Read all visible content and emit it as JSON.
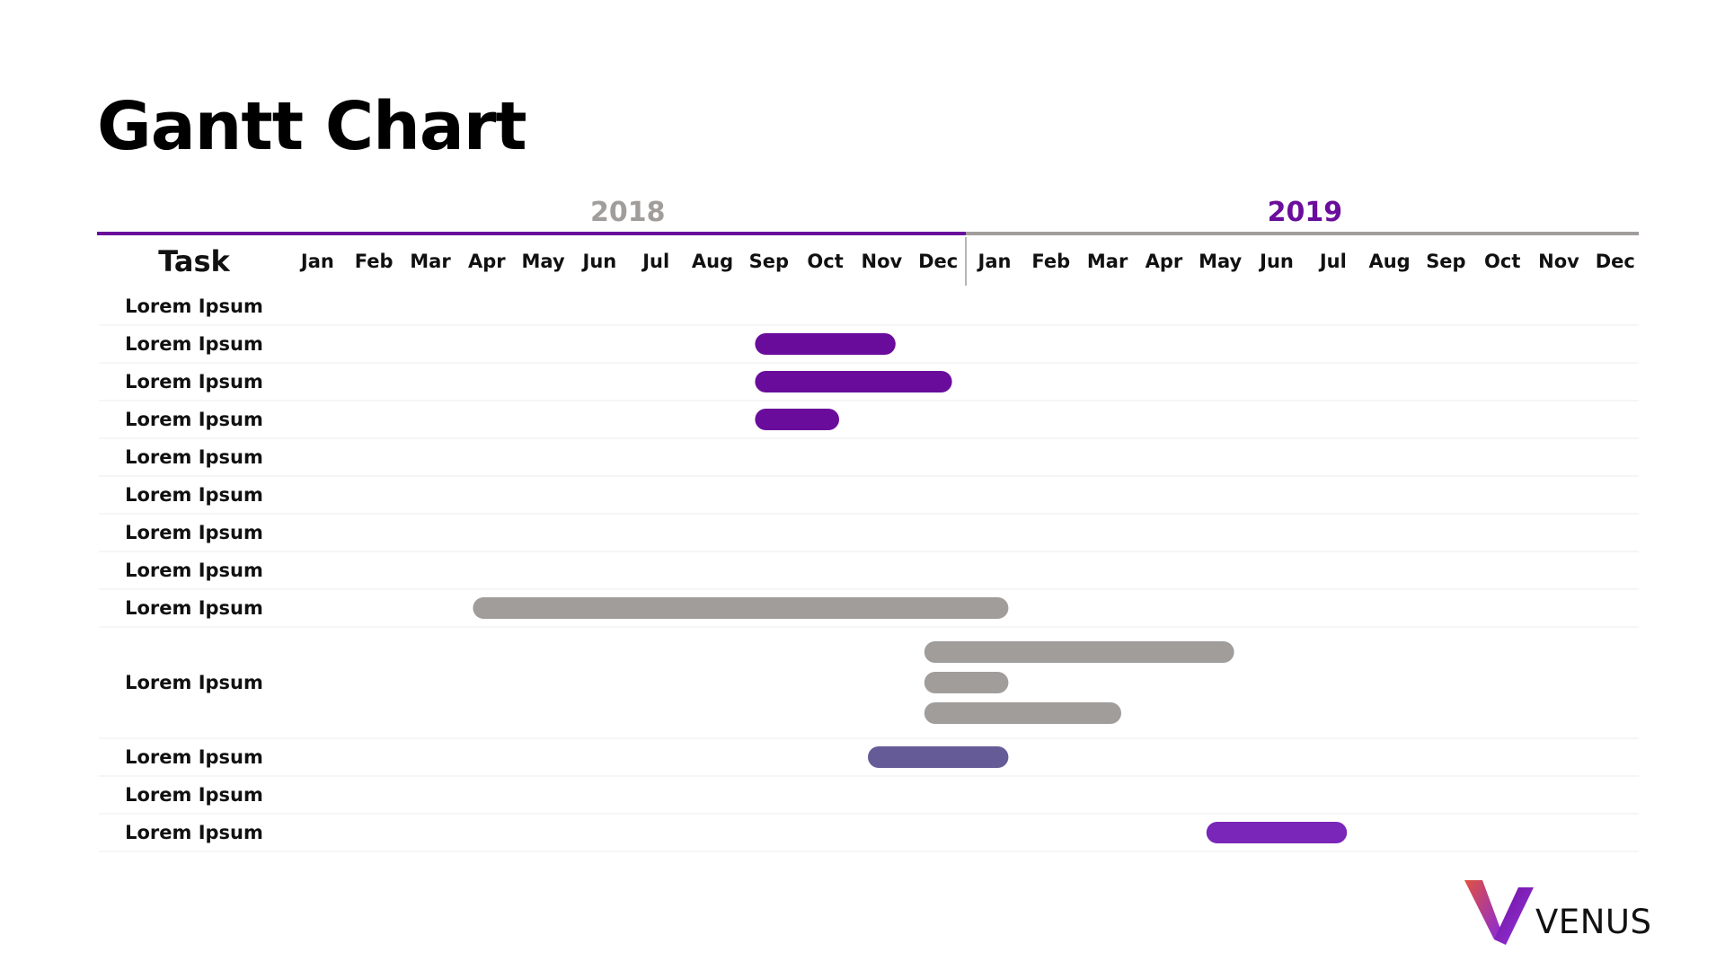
{
  "page": {
    "title": "Gantt Chart",
    "logo_text": "VENUS"
  },
  "chart_data": {
    "type": "gantt",
    "task_header": "Task",
    "years": [
      {
        "label": "2018",
        "color": "#a09d9b"
      },
      {
        "label": "2019",
        "color": "#6a0d9c"
      }
    ],
    "months": [
      "Jan",
      "Feb",
      "Mar",
      "Apr",
      "May",
      "Jun",
      "Jul",
      "Aug",
      "Sep",
      "Oct",
      "Nov",
      "Dec",
      "Jan",
      "Feb",
      "Mar",
      "Apr",
      "May",
      "Jun",
      "Jul",
      "Aug",
      "Sep",
      "Oct",
      "Nov",
      "Dec"
    ],
    "tasks": [
      {
        "label": "Lorem Ipsum",
        "bars": []
      },
      {
        "label": "Lorem Ipsum",
        "bars": [
          {
            "start": "2018-09",
            "end": "2018-11",
            "color": "#6a0c9b"
          }
        ]
      },
      {
        "label": "Lorem Ipsum",
        "bars": [
          {
            "start": "2018-09",
            "end": "2018-12",
            "color": "#6a0c9b"
          }
        ]
      },
      {
        "label": "Lorem Ipsum",
        "bars": [
          {
            "start": "2018-09",
            "end": "2018-10",
            "color": "#6a0c9b"
          }
        ]
      },
      {
        "label": "Lorem Ipsum",
        "bars": []
      },
      {
        "label": "Lorem Ipsum",
        "bars": []
      },
      {
        "label": "Lorem Ipsum",
        "bars": []
      },
      {
        "label": "Lorem Ipsum",
        "bars": []
      },
      {
        "label": "Lorem Ipsum",
        "bars": [
          {
            "start": "2018-04",
            "end": "2019-01",
            "color": "#a09d9b"
          }
        ]
      },
      {
        "label": "Lorem Ipsum",
        "bars": [
          {
            "start": "2018-12",
            "end": "2019-05",
            "color": "#a09d9b"
          },
          {
            "start": "2018-12",
            "end": "2019-01",
            "color": "#a09d9b"
          },
          {
            "start": "2018-12",
            "end": "2019-03",
            "color": "#a09d9b"
          }
        ]
      },
      {
        "label": "Lorem Ipsum",
        "bars": [
          {
            "start": "2018-11",
            "end": "2019-01",
            "color": "#655c97"
          }
        ]
      },
      {
        "label": "Lorem Ipsum",
        "bars": []
      },
      {
        "label": "Lorem Ipsum",
        "bars": [
          {
            "start": "2019-05",
            "end": "2019-07",
            "color": "#7a26b8"
          }
        ]
      }
    ]
  }
}
